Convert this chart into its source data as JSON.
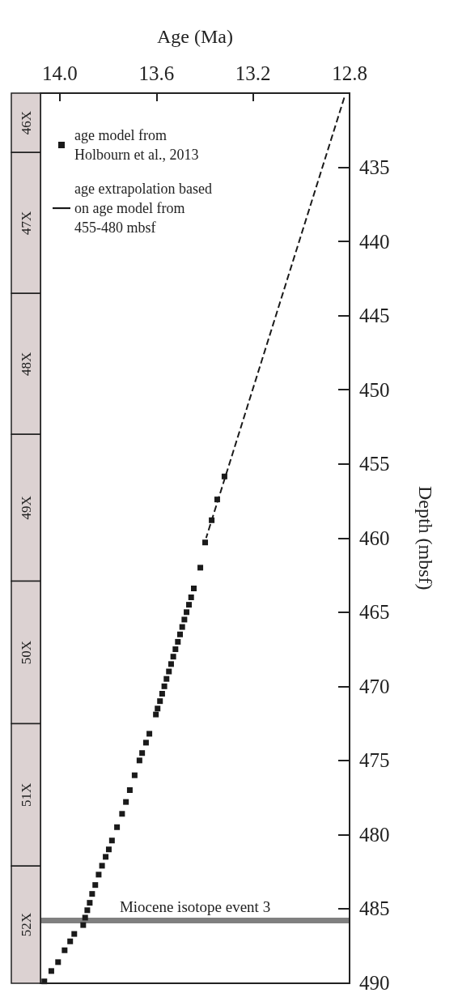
{
  "chart_data": [
    {
      "type": "bar",
      "categories": [
        null
      ],
      "ylim": [
        490,
        430
      ],
      "tick_labels": false,
      "series": [
        {
          "name": "46X",
          "color": "#dcd2d2",
          "base": [
            430
          ],
          "values": [
            4.0
          ]
        },
        {
          "name": "47X",
          "color": "#dcd2d2",
          "base": [
            434.0
          ],
          "values": [
            9.5
          ]
        },
        {
          "name": "48X",
          "color": "#dcd2d2",
          "base": [
            443.5
          ],
          "values": [
            9.5
          ]
        },
        {
          "name": "49X",
          "color": "#dcd2d2",
          "base": [
            453.0
          ],
          "values": [
            9.9
          ]
        },
        {
          "name": "50X",
          "color": "#dcd2d2",
          "base": [
            462.9
          ],
          "values": [
            9.6
          ]
        },
        {
          "name": "51X",
          "color": "#dcd2d2",
          "base": [
            472.5
          ],
          "values": [
            9.6
          ]
        },
        {
          "name": "52X",
          "color": "#dcd2d2",
          "base": [
            482.1
          ],
          "values": [
            7.9
          ]
        }
      ]
    },
    {
      "type": "scatter",
      "xlabel": "Age (Ma)",
      "ylabel": "Depth (mbsf)",
      "xlim": [
        14.08,
        12.8
      ],
      "xticks": [
        {
          "value": 14.0,
          "label": "14.0"
        },
        13.6,
        13.2,
        12.8
      ],
      "ylim": [
        490,
        430
      ],
      "yticks": [
        435,
        440,
        445,
        450,
        455,
        460,
        465,
        470,
        475,
        480,
        485,
        490
      ],
      "grid": false,
      "legend": "top left",
      "series": [
        {
          "name": "age model from Holbourn et al., 2013",
          "type": "scatter",
          "marker": "square",
          "color": "#1a1a1a",
          "x": [
            13.318,
            13.348,
            13.371,
            13.398,
            13.418,
            13.445,
            13.456,
            13.465,
            13.475,
            13.484,
            13.493,
            13.502,
            13.511,
            13.521,
            13.53,
            13.539,
            13.548,
            13.558,
            13.567,
            13.576,
            13.585,
            13.595,
            13.602,
            13.629,
            13.643,
            13.659,
            13.67,
            13.69,
            13.71,
            13.726,
            13.742,
            13.763,
            13.784,
            13.797,
            13.81,
            13.825,
            13.839,
            13.853,
            13.866,
            13.876,
            13.886,
            13.895,
            13.903,
            13.94,
            13.957,
            13.98,
            14.007,
            14.035,
            14.064
          ],
          "values": [
            455.85,
            457.4,
            458.8,
            460.3,
            462.0,
            463.4,
            464.0,
            464.5,
            465.0,
            465.5,
            466.0,
            466.5,
            467.0,
            467.5,
            468.0,
            468.5,
            469.0,
            469.5,
            470.0,
            470.5,
            471.0,
            471.5,
            471.9,
            473.2,
            473.8,
            474.5,
            475.0,
            476.0,
            477.0,
            477.8,
            478.6,
            479.5,
            480.4,
            481.0,
            481.5,
            482.1,
            482.7,
            483.4,
            484.0,
            484.6,
            485.1,
            485.6,
            486.1,
            486.7,
            487.2,
            487.8,
            488.6,
            489.2,
            489.9
          ]
        },
        {
          "name": "age extrapolation based on age model from 455-480 mbsf",
          "type": "line",
          "marker": "none",
          "line_style": "dashed",
          "color": "#1a1a1a",
          "x": [
            12.822,
            13.394
          ],
          "values": [
            430.3,
            460.0
          ]
        }
      ],
      "ref_lines": [
        {
          "axis": "y",
          "value": 485.8,
          "label": "Miocene isotope event 3",
          "color": "#808080"
        }
      ]
    }
  ]
}
